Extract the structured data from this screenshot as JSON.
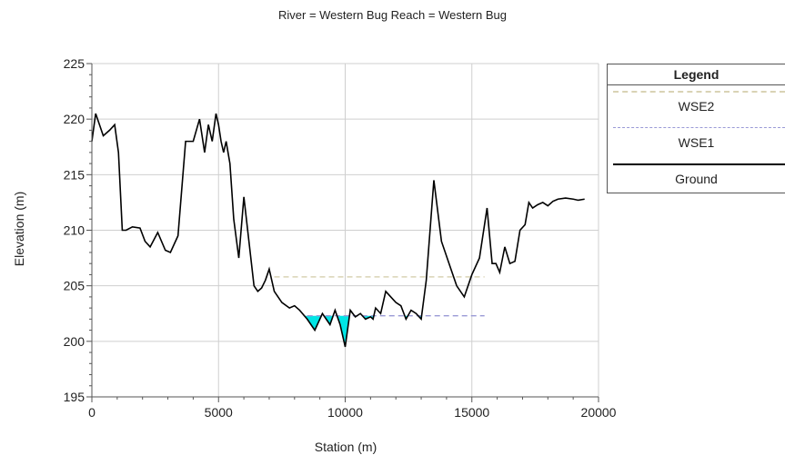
{
  "chart_data": {
    "type": "line",
    "title": "River = Western Bug   Reach = Western Bug",
    "xlabel": "Station (m)",
    "ylabel": "Elevation (m)",
    "xlim": [
      0,
      20000
    ],
    "ylim": [
      195,
      225
    ],
    "xticks": [
      "0",
      "5000",
      "10000",
      "15000",
      "20000"
    ],
    "yticks": [
      "195",
      "200",
      "205",
      "210",
      "215",
      "220",
      "225"
    ],
    "grid": true,
    "legend_title": "Legend",
    "legend_position": "right",
    "series": [
      {
        "name": "WSE2",
        "color": "#d9d3b5",
        "style": "dashed",
        "x": [
          7200,
          15500
        ],
        "y": [
          205.8,
          205.8
        ]
      },
      {
        "name": "WSE1",
        "color": "#9a9ad6",
        "style": "dashed",
        "x": [
          8500,
          15500
        ],
        "y": [
          202.3,
          202.3
        ]
      },
      {
        "name": "Ground",
        "color": "#000000",
        "style": "solid",
        "x": [
          0,
          150,
          450,
          700,
          900,
          1050,
          1200,
          1350,
          1600,
          1900,
          2100,
          2300,
          2600,
          2900,
          3100,
          3400,
          3700,
          3850,
          4000,
          4250,
          4450,
          4600,
          4750,
          4900,
          5000,
          5100,
          5200,
          5300,
          5450,
          5600,
          5800,
          6000,
          6200,
          6400,
          6550,
          6700,
          6850,
          7000,
          7200,
          7500,
          7800,
          8000,
          8200,
          8500,
          8800,
          9100,
          9400,
          9600,
          9800,
          10000,
          10200,
          10400,
          10600,
          10800,
          11000,
          11100,
          11200,
          11400,
          11600,
          11800,
          12000,
          12200,
          12400,
          12600,
          12800,
          13000,
          13200,
          13500,
          13800,
          14100,
          14400,
          14700,
          15000,
          15300,
          15600,
          15800,
          15950,
          16100,
          16300,
          16500,
          16700,
          16900,
          17100,
          17250,
          17400,
          17600,
          17800,
          18000,
          18200,
          18400,
          18700,
          19000,
          19200,
          19450
        ],
        "y": [
          218,
          220.5,
          218.5,
          219,
          219.5,
          217,
          210,
          210,
          210.3,
          210.2,
          209,
          208.5,
          209.8,
          208.2,
          208,
          209.5,
          218,
          218,
          218,
          220,
          217,
          219.5,
          218,
          220.5,
          219.5,
          218,
          217,
          218,
          216,
          211,
          207.5,
          213,
          209,
          205,
          204.5,
          204.8,
          205.5,
          206.5,
          204.5,
          203.5,
          203,
          203.2,
          202.8,
          202,
          201,
          202.5,
          201.5,
          202.8,
          201.5,
          199.5,
          202.8,
          202.2,
          202.5,
          202,
          202.2,
          202,
          203,
          202.5,
          204.5,
          204,
          203.5,
          203.2,
          202,
          202.8,
          202.5,
          202,
          205.5,
          214.5,
          209,
          207,
          205,
          204,
          206,
          207.5,
          212,
          207,
          207,
          206.2,
          208.5,
          207,
          207.2,
          210,
          210.5,
          212.5,
          212,
          212.3,
          212.5,
          212.2,
          212.6,
          212.8,
          212.9,
          212.8,
          212.7,
          212.8
        ]
      }
    ]
  }
}
